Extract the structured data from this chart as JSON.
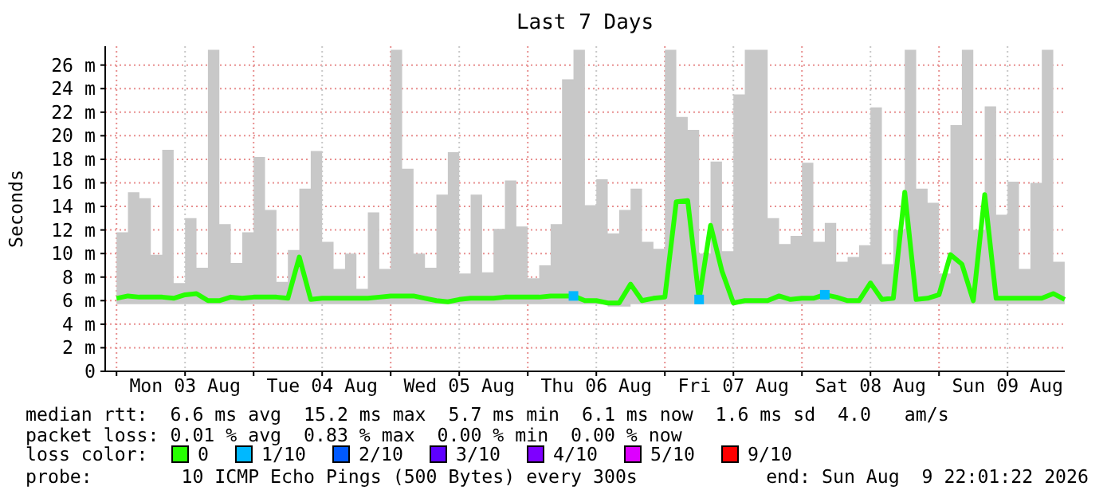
{
  "chart_data": {
    "type": "line",
    "title": "Last 7 Days",
    "ylabel": "Seconds",
    "x": [
      "2026-08-03T00:00",
      "2026-08-03T02:00",
      "2026-08-03T04:00",
      "2026-08-03T06:00",
      "2026-08-03T08:00",
      "2026-08-03T10:00",
      "2026-08-03T12:00",
      "2026-08-03T14:00",
      "2026-08-03T16:00",
      "2026-08-03T18:00",
      "2026-08-03T20:00",
      "2026-08-03T22:00",
      "2026-08-04T00:00",
      "2026-08-04T02:00",
      "2026-08-04T04:00",
      "2026-08-04T06:00",
      "2026-08-04T08:00",
      "2026-08-04T10:00",
      "2026-08-04T12:00",
      "2026-08-04T14:00",
      "2026-08-04T16:00",
      "2026-08-04T18:00",
      "2026-08-04T20:00",
      "2026-08-04T22:00",
      "2026-08-05T00:00",
      "2026-08-05T02:00",
      "2026-08-05T04:00",
      "2026-08-05T06:00",
      "2026-08-05T08:00",
      "2026-08-05T10:00",
      "2026-08-05T12:00",
      "2026-08-05T14:00",
      "2026-08-05T16:00",
      "2026-08-05T18:00",
      "2026-08-05T20:00",
      "2026-08-05T22:00",
      "2026-08-06T00:00",
      "2026-08-06T02:00",
      "2026-08-06T04:00",
      "2026-08-06T06:00",
      "2026-08-06T08:00",
      "2026-08-06T10:00",
      "2026-08-06T12:00",
      "2026-08-06T14:00",
      "2026-08-06T16:00",
      "2026-08-06T18:00",
      "2026-08-06T20:00",
      "2026-08-06T22:00",
      "2026-08-07T00:00",
      "2026-08-07T02:00",
      "2026-08-07T04:00",
      "2026-08-07T06:00",
      "2026-08-07T08:00",
      "2026-08-07T10:00",
      "2026-08-07T12:00",
      "2026-08-07T14:00",
      "2026-08-07T16:00",
      "2026-08-07T18:00",
      "2026-08-07T20:00",
      "2026-08-07T22:00",
      "2026-08-08T00:00",
      "2026-08-08T02:00",
      "2026-08-08T04:00",
      "2026-08-08T06:00",
      "2026-08-08T08:00",
      "2026-08-08T10:00",
      "2026-08-08T12:00",
      "2026-08-08T14:00",
      "2026-08-08T16:00",
      "2026-08-08T18:00",
      "2026-08-08T20:00",
      "2026-08-08T22:00",
      "2026-08-09T00:00",
      "2026-08-09T02:00",
      "2026-08-09T04:00",
      "2026-08-09T06:00",
      "2026-08-09T08:00",
      "2026-08-09T10:00",
      "2026-08-09T12:00",
      "2026-08-09T14:00",
      "2026-08-09T16:00",
      "2026-08-09T18:00",
      "2026-08-09T20:00",
      "2026-08-09T22:00"
    ],
    "series": [
      {
        "name": "0",
        "color": "#26ff00",
        "values": [
          6.2,
          6.4,
          6.3,
          6.3,
          6.3,
          6.2,
          6.5,
          6.6,
          6.0,
          6.0,
          6.3,
          6.2,
          6.3,
          6.3,
          6.3,
          6.2,
          9.7,
          6.1,
          6.2,
          6.2,
          6.2,
          6.2,
          6.2,
          6.3,
          6.4,
          6.4,
          6.4,
          6.2,
          6.0,
          5.9,
          6.1,
          6.2,
          6.2,
          6.2,
          6.3,
          6.3,
          6.3,
          6.3,
          6.4,
          6.4,
          6.4,
          6.0,
          6.0,
          5.8,
          5.8,
          7.4,
          6.0,
          6.2,
          6.3,
          14.4,
          14.5,
          6.1,
          12.4,
          8.5,
          5.8,
          6.0,
          6.0,
          6.0,
          6.4,
          6.1,
          6.2,
          6.2,
          6.5,
          6.3,
          6.0,
          6.0,
          7.5,
          6.1,
          6.2,
          15.2,
          6.1,
          6.2,
          6.5,
          9.9,
          9.1,
          6.0,
          15.0,
          6.2,
          6.2,
          6.2,
          6.2,
          6.2,
          6.6,
          6.1
        ],
        "lower": [
          5.7,
          5.7,
          5.7,
          5.7,
          5.7,
          5.7,
          5.7,
          5.7,
          5.7,
          5.7,
          5.7,
          5.7,
          5.7,
          5.7,
          5.7,
          5.7,
          5.7,
          5.7,
          5.7,
          5.7,
          5.7,
          5.7,
          5.7,
          5.7,
          5.7,
          5.7,
          5.7,
          5.7,
          5.7,
          5.7,
          5.7,
          5.7,
          5.7,
          5.7,
          5.7,
          5.7,
          5.7,
          5.7,
          5.7,
          5.7,
          5.7,
          5.7,
          5.7,
          5.5,
          5.5,
          5.7,
          5.7,
          5.7,
          5.7,
          5.7,
          5.7,
          5.7,
          5.7,
          5.7,
          5.7,
          5.7,
          5.7,
          5.7,
          5.7,
          5.7,
          5.7,
          5.7,
          5.7,
          5.7,
          5.7,
          5.7,
          5.7,
          5.7,
          5.7,
          5.7,
          5.7,
          5.7,
          5.7,
          5.7,
          5.7,
          5.7,
          5.7,
          5.7,
          5.7,
          5.7,
          5.7,
          5.7,
          5.7,
          5.7
        ],
        "upper": [
          11.8,
          15.2,
          14.7,
          9.9,
          18.8,
          7.5,
          13.0,
          8.8,
          27.3,
          12.5,
          9.2,
          11.8,
          18.2,
          13.7,
          7.6,
          10.3,
          15.5,
          18.7,
          11.0,
          8.7,
          10.0,
          7.0,
          13.5,
          8.7,
          27.3,
          17.2,
          10.0,
          8.8,
          15.0,
          18.6,
          8.3,
          15.0,
          8.4,
          12.1,
          16.2,
          12.3,
          7.9,
          9.0,
          12.5,
          24.8,
          27.3,
          14.1,
          16.3,
          11.7,
          13.7,
          15.5,
          11.0,
          10.4,
          27.3,
          21.6,
          20.5,
          10.0,
          17.8,
          10.2,
          23.5,
          27.3,
          27.3,
          13.0,
          10.8,
          11.5,
          17.7,
          11.0,
          12.6,
          9.3,
          9.7,
          10.7,
          22.4,
          9.1,
          12.0,
          27.3,
          15.5,
          14.3,
          8.3,
          20.9,
          27.3,
          12.0,
          22.5,
          13.3,
          16.1,
          8.7,
          16.0,
          27.3,
          9.3,
          14.6
        ]
      },
      {
        "name": "1/10",
        "color": "#00b8ff",
        "type": "scatter",
        "marker": "square",
        "x": [
          "2026-08-06T08:00",
          "2026-08-07T06:00",
          "2026-08-08T04:00"
        ],
        "values": [
          6.4,
          6.1,
          6.5
        ]
      },
      {
        "name": "2/10",
        "color": "#0059ff",
        "values": [
          null,
          null,
          null,
          null,
          null,
          null,
          null,
          null,
          null,
          null,
          null,
          null,
          null,
          null,
          null,
          null,
          null,
          null,
          null,
          null,
          null,
          null,
          null,
          null,
          null,
          null,
          null,
          null,
          null,
          null,
          null,
          null,
          null,
          null,
          null,
          null,
          null,
          null,
          null,
          null,
          null,
          null,
          null,
          null,
          null,
          null,
          null,
          null,
          null,
          null,
          null,
          null,
          null,
          null,
          null,
          null,
          null,
          null,
          null,
          null,
          null,
          null,
          null,
          null,
          null,
          null,
          null,
          null,
          null,
          null,
          null,
          null,
          null,
          null,
          null,
          null,
          null,
          null,
          null,
          null,
          null,
          null,
          null,
          null
        ]
      },
      {
        "name": "3/10",
        "color": "#5e00ff",
        "values": [
          null,
          null,
          null,
          null,
          null,
          null,
          null,
          null,
          null,
          null,
          null,
          null,
          null,
          null,
          null,
          null,
          null,
          null,
          null,
          null,
          null,
          null,
          null,
          null,
          null,
          null,
          null,
          null,
          null,
          null,
          null,
          null,
          null,
          null,
          null,
          null,
          null,
          null,
          null,
          null,
          null,
          null,
          null,
          null,
          null,
          null,
          null,
          null,
          null,
          null,
          null,
          null,
          null,
          null,
          null,
          null,
          null,
          null,
          null,
          null,
          null,
          null,
          null,
          null,
          null,
          null,
          null,
          null,
          null,
          null,
          null,
          null,
          null,
          null,
          null,
          null,
          null,
          null,
          null,
          null,
          null,
          null,
          null,
          null
        ]
      },
      {
        "name": "4/10",
        "color": "#7e00ff",
        "values": [
          null,
          null,
          null,
          null,
          null,
          null,
          null,
          null,
          null,
          null,
          null,
          null,
          null,
          null,
          null,
          null,
          null,
          null,
          null,
          null,
          null,
          null,
          null,
          null,
          null,
          null,
          null,
          null,
          null,
          null,
          null,
          null,
          null,
          null,
          null,
          null,
          null,
          null,
          null,
          null,
          null,
          null,
          null,
          null,
          null,
          null,
          null,
          null,
          null,
          null,
          null,
          null,
          null,
          null,
          null,
          null,
          null,
          null,
          null,
          null,
          null,
          null,
          null,
          null,
          null,
          null,
          null,
          null,
          null,
          null,
          null,
          null,
          null,
          null,
          null,
          null,
          null,
          null,
          null,
          null,
          null,
          null,
          null,
          null
        ]
      },
      {
        "name": "5/10",
        "color": "#dd00ff",
        "values": [
          null,
          null,
          null,
          null,
          null,
          null,
          null,
          null,
          null,
          null,
          null,
          null,
          null,
          null,
          null,
          null,
          null,
          null,
          null,
          null,
          null,
          null,
          null,
          null,
          null,
          null,
          null,
          null,
          null,
          null,
          null,
          null,
          null,
          null,
          null,
          null,
          null,
          null,
          null,
          null,
          null,
          null,
          null,
          null,
          null,
          null,
          null,
          null,
          null,
          null,
          null,
          null,
          null,
          null,
          null,
          null,
          null,
          null,
          null,
          null,
          null,
          null,
          null,
          null,
          null,
          null,
          null,
          null,
          null,
          null,
          null,
          null,
          null,
          null,
          null,
          null,
          null,
          null,
          null,
          null,
          null,
          null,
          null,
          null
        ]
      },
      {
        "name": "9/10",
        "color": "#ff0000",
        "values": [
          null,
          null,
          null,
          null,
          null,
          null,
          null,
          null,
          null,
          null,
          null,
          null,
          null,
          null,
          null,
          null,
          null,
          null,
          null,
          null,
          null,
          null,
          null,
          null,
          null,
          null,
          null,
          null,
          null,
          null,
          null,
          null,
          null,
          null,
          null,
          null,
          null,
          null,
          null,
          null,
          null,
          null,
          null,
          null,
          null,
          null,
          null,
          null,
          null,
          null,
          null,
          null,
          null,
          null,
          null,
          null,
          null,
          null,
          null,
          null,
          null,
          null,
          null,
          null,
          null,
          null,
          null,
          null,
          null,
          null,
          null,
          null,
          null,
          null,
          null,
          null,
          null,
          null,
          null,
          null,
          null,
          null,
          null,
          null
        ]
      }
    ],
    "xlim": [
      "2026-08-02T22:01",
      "2026-08-09T22:01"
    ],
    "xticks": [
      {
        "value": "2026-08-03T00:00",
        "label": null
      },
      {
        "value": "2026-08-03T12:00",
        "label": "Mon 03 Aug"
      },
      {
        "value": "2026-08-04T00:00",
        "label": null
      },
      {
        "value": "2026-08-04T12:00",
        "label": "Tue 04 Aug"
      },
      {
        "value": "2026-08-05T00:00",
        "label": null
      },
      {
        "value": "2026-08-05T12:00",
        "label": "Wed 05 Aug"
      },
      {
        "value": "2026-08-06T00:00",
        "label": null
      },
      {
        "value": "2026-08-06T12:00",
        "label": "Thu 06 Aug"
      },
      {
        "value": "2026-08-07T00:00",
        "label": null
      },
      {
        "value": "2026-08-07T12:00",
        "label": "Fri 07 Aug"
      },
      {
        "value": "2026-08-08T00:00",
        "label": null
      },
      {
        "value": "2026-08-08T12:00",
        "label": "Sat 08 Aug"
      },
      {
        "value": "2026-08-09T00:00",
        "label": null
      },
      {
        "value": "2026-08-09T12:00",
        "label": "Sun 09 Aug"
      }
    ],
    "ylim": [
      0,
      27.6
    ],
    "yticks": [
      0,
      {
        "value": 2,
        "label": "2 m"
      },
      {
        "value": 4,
        "label": "4 m"
      },
      {
        "value": 6,
        "label": "6 m"
      },
      {
        "value": 8,
        "label": "8 m"
      },
      {
        "value": 10,
        "label": "10 m"
      },
      {
        "value": 12,
        "label": "12 m"
      },
      {
        "value": 14,
        "label": "14 m"
      },
      {
        "value": 16,
        "label": "16 m"
      },
      {
        "value": 18,
        "label": "18 m"
      },
      {
        "value": 20,
        "label": "20 m"
      },
      {
        "value": 22,
        "label": "22 m"
      },
      {
        "value": 24,
        "label": "24 m"
      },
      {
        "value": 26,
        "label": "26 m"
      }
    ],
    "grid": true,
    "legend": "bottom",
    "legend_title": "loss color:",
    "annotations": [
      "median rtt:  6.6 ms avg  15.2 ms max  5.7 ms min  6.1 ms now  1.6 ms sd  4.0   am/s",
      "packet loss: 0.01 % avg  0.83 % max  0.00 % min  0.00 % now",
      "probe:        10 ICMP Echo Pings (500 Bytes) every 300s",
      "end: Sun Aug  9 22:01:22 2026"
    ]
  }
}
